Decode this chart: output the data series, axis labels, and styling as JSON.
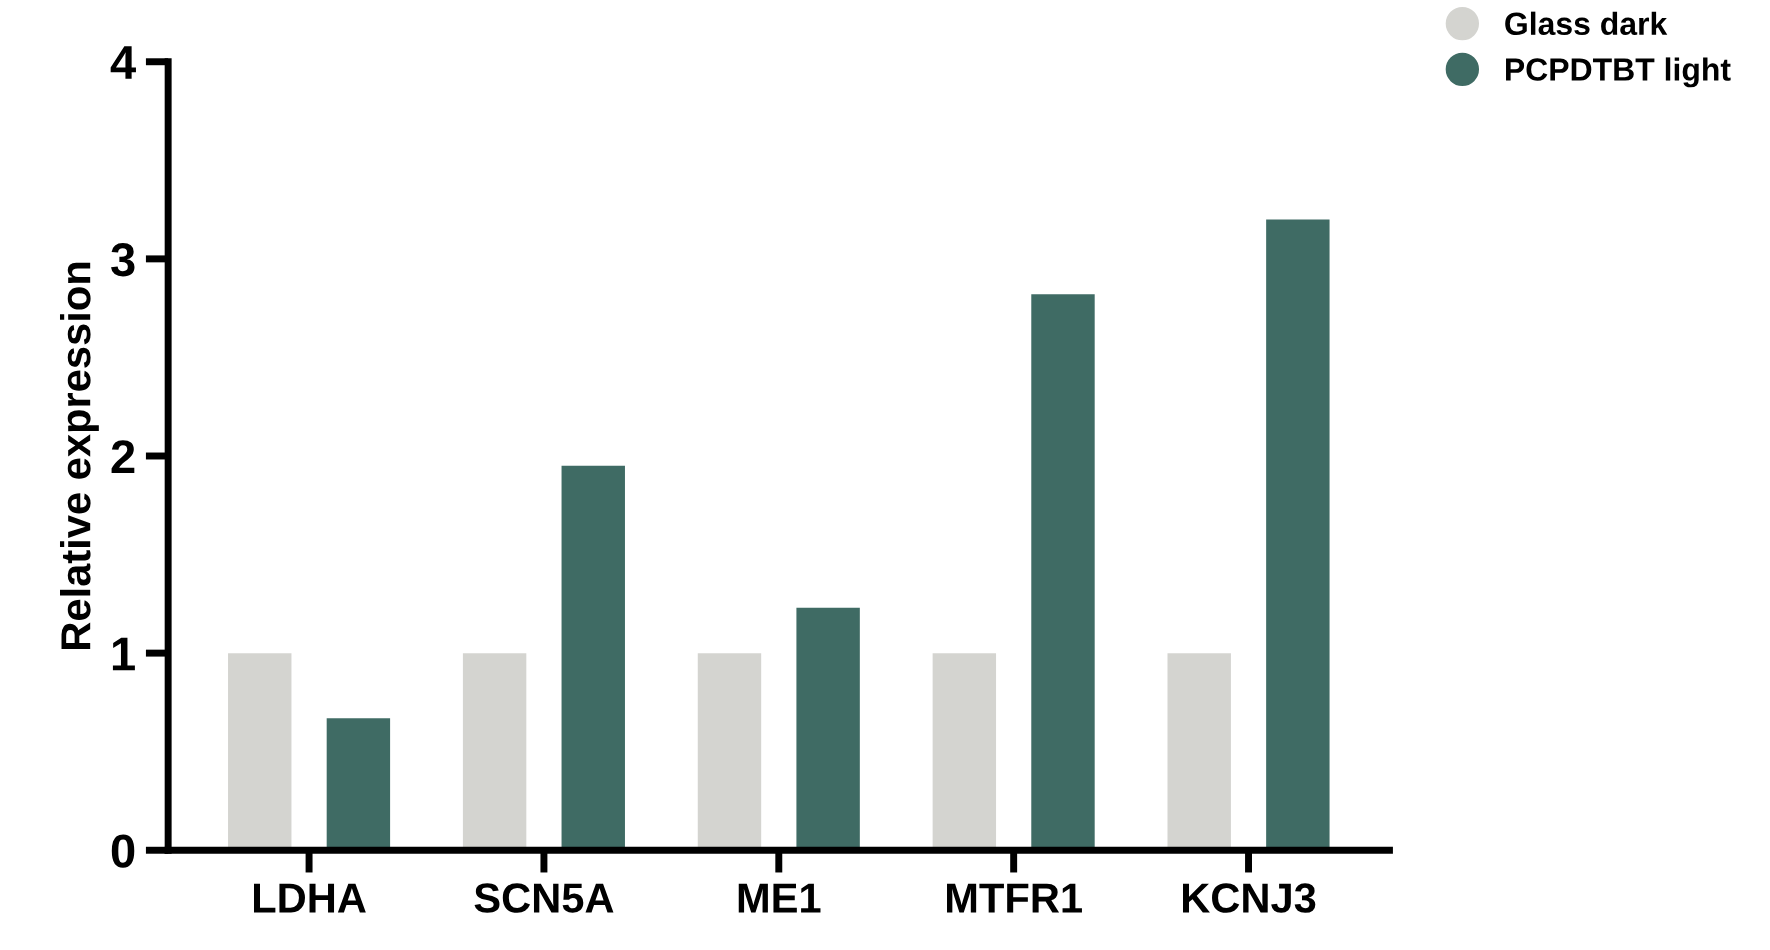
{
  "chart_data": {
    "type": "bar",
    "ylabel": "Relative expression",
    "categories": [
      "LDHA",
      "SCN5A",
      "ME1",
      "MTFR1",
      "KCNJ3"
    ],
    "series": [
      {
        "name": "Glass dark",
        "color": "#d4d4d0",
        "values": [
          1.0,
          1.0,
          1.0,
          1.0,
          1.0
        ]
      },
      {
        "name": "PCPDTBT light",
        "color": "#3f6b64",
        "values": [
          0.67,
          1.95,
          1.23,
          2.82,
          3.2
        ]
      }
    ],
    "ylim": [
      0,
      4
    ],
    "yticks": [
      0,
      1,
      2,
      3,
      4
    ],
    "grid": false,
    "legend": "top right"
  }
}
